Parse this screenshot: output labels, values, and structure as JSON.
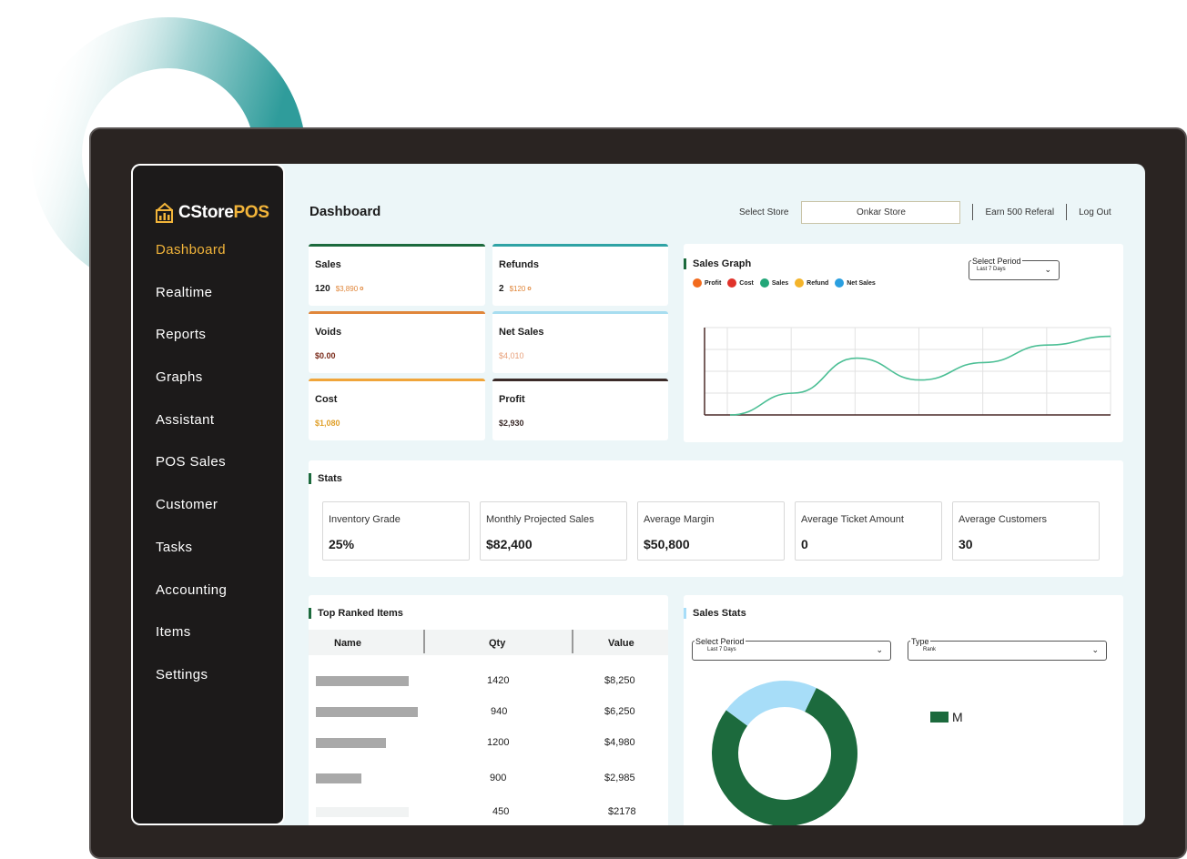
{
  "app": {
    "logo_prefix": "CStore",
    "logo_suffix": "POS",
    "brand_color": "#f3b53a"
  },
  "sidebar": {
    "items": [
      {
        "label": "Dashboard",
        "active": true
      },
      {
        "label": "Realtime"
      },
      {
        "label": "Reports"
      },
      {
        "label": "Graphs"
      },
      {
        "label": "Assistant"
      },
      {
        "label": "POS Sales"
      },
      {
        "label": "Customer"
      },
      {
        "label": "Tasks"
      },
      {
        "label": "Accounting"
      },
      {
        "label": "Items"
      },
      {
        "label": "Settings"
      }
    ]
  },
  "header": {
    "title": "Dashboard",
    "select_store_label": "Select Store",
    "store_value": "Onkar Store",
    "referral_link": "Earn 500 Referal",
    "logout_link": "Log Out"
  },
  "metrics": [
    {
      "title": "Sales",
      "value": "120",
      "sub": "$3,890",
      "color": "#1c6a3d"
    },
    {
      "title": "Refunds",
      "value": "2",
      "sub": "$120",
      "color": "#2fa3a5"
    },
    {
      "title": "Voids",
      "value": "$0.00",
      "sub": "",
      "color": "#e0863a"
    },
    {
      "title": "Net Sales",
      "value": "$4,010",
      "sub": "",
      "color": "#a7ddf0"
    },
    {
      "title": "Cost",
      "value": "$1,080",
      "sub": "",
      "color": "#f0a53a"
    },
    {
      "title": "Profit",
      "value": "$2,930",
      "sub": "",
      "color": "#3a2a28"
    }
  ],
  "sales_graph": {
    "title": "Sales Graph",
    "legend": [
      {
        "label": "Profit",
        "color": "#f26b1d"
      },
      {
        "label": "Cost",
        "color": "#e0322a"
      },
      {
        "label": "Sales",
        "color": "#22a678"
      },
      {
        "label": "Refund",
        "color": "#f4b42a"
      },
      {
        "label": "Net Sales",
        "color": "#2a9fe0"
      }
    ],
    "period_label": "Select Period",
    "period_value": "Last 7 Days",
    "line_color": "#4cbf95"
  },
  "chart_data": {
    "type": "line",
    "x": [
      0,
      1,
      2,
      3,
      4,
      5,
      6
    ],
    "series": [
      {
        "values": [
          0,
          25,
          65,
          40,
          60,
          80,
          90
        ]
      }
    ],
    "ylim": [
      0,
      100
    ],
    "grid": true
  },
  "stats": {
    "title": "Stats",
    "items": [
      {
        "label": "Inventory Grade",
        "value": "25%"
      },
      {
        "label": "Monthly Projected Sales",
        "value": "$82,400"
      },
      {
        "label": "Average Margin",
        "value": "$50,800"
      },
      {
        "label": "Average Ticket Amount",
        "value": "0"
      },
      {
        "label": "Average Customers",
        "value": "30"
      }
    ]
  },
  "top_items": {
    "title": "Top Ranked Items",
    "columns": [
      "Name",
      "Qty",
      "Value"
    ],
    "rows": [
      {
        "qty": "1420",
        "value": "$8,250"
      },
      {
        "qty": "940",
        "value": "$6,250"
      },
      {
        "qty": "1200",
        "value": "$4,980"
      },
      {
        "qty": "900",
        "value": "$2,985"
      },
      {
        "qty": "450",
        "value": "$2178"
      }
    ]
  },
  "sales_stats": {
    "title": "Sales Stats",
    "period_label": "Select Period",
    "period_value": "Last 7 Days",
    "type_label": "Type",
    "type_value": "Rank",
    "legend_label": "M",
    "donut": [
      {
        "fraction": 0.78,
        "color": "#1c6a3d"
      },
      {
        "fraction": 0.22,
        "color": "#a7ddf8"
      }
    ]
  }
}
